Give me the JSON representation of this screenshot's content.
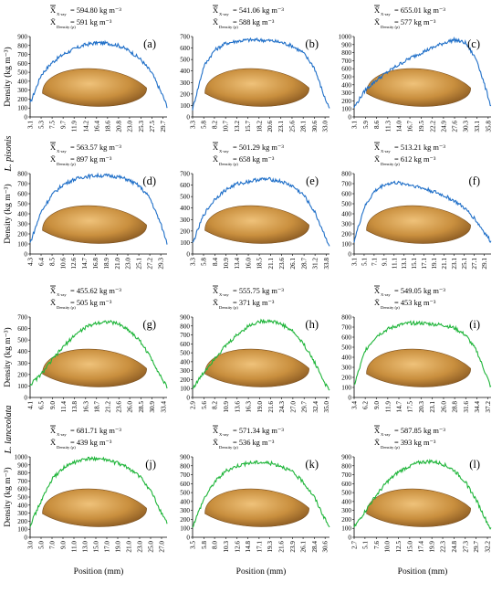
{
  "figure": {
    "row_labels": [
      "L. pisonis",
      "L. lanceolata"
    ],
    "xlabel": "Position (mm)",
    "ylabel": "Density (kg m⁻³)",
    "legend_symbol": "X̄",
    "xray_subscript": "X-ray",
    "density_subscript": "Density (ρ)",
    "colors": {
      "species_1": "#1f6fc8",
      "species_2": "#1fb53a",
      "seed_fill": "#c08a3c",
      "seed_light": "#e6b56a"
    }
  },
  "chart_data": [
    {
      "panel": "(a)",
      "type": "line",
      "species": "L. pisonis",
      "xray_mean": "= 594.80 kg m⁻³",
      "density_mean": "= 591 kg m⁻³",
      "yticks": [
        "0",
        "100",
        "200",
        "300",
        "400",
        "500",
        "600",
        "700",
        "800",
        "900"
      ],
      "ylim": [
        0,
        900
      ],
      "xticks": [
        "3.1",
        "5.3",
        "7.5",
        "9.7",
        "11.9",
        "14.2",
        "16.4",
        "18.6",
        "20.8",
        "23.0",
        "25.3",
        "27.5",
        "29.7"
      ],
      "xlim": [
        3.1,
        30.5
      ],
      "x": [
        3.1,
        5.3,
        7.5,
        9.7,
        11.9,
        14.2,
        16.4,
        18.6,
        20.8,
        23.0,
        25.3,
        27.5,
        29.7,
        30.5
      ],
      "y": [
        150,
        470,
        610,
        700,
        760,
        810,
        830,
        825,
        800,
        740,
        640,
        490,
        230,
        120
      ]
    },
    {
      "panel": "(b)",
      "type": "line",
      "species": "L. pisonis",
      "xray_mean": "= 541.06 kg m⁻³",
      "density_mean": "= 588 kg m⁻³",
      "yticks": [
        "0",
        "100",
        "200",
        "300",
        "400",
        "500",
        "600",
        "700"
      ],
      "ylim": [
        0,
        700
      ],
      "xticks": [
        "3.3",
        "5.8",
        "8.2",
        "10.7",
        "13.2",
        "15.7",
        "18.2",
        "20.6",
        "23.1",
        "25.6",
        "28.1",
        "30.6",
        "33.0"
      ],
      "xlim": [
        3.3,
        34
      ],
      "x": [
        3.3,
        5.8,
        8.2,
        10.7,
        13.2,
        15.7,
        18.2,
        20.6,
        23.1,
        25.6,
        28.1,
        30.6,
        33.0,
        34.0
      ],
      "y": [
        70,
        440,
        580,
        640,
        660,
        670,
        670,
        665,
        650,
        620,
        560,
        430,
        160,
        80
      ]
    },
    {
      "panel": "(c)",
      "type": "line",
      "species": "L. pisonis",
      "xray_mean": "= 655.01 kg m⁻³",
      "density_mean": "= 577 kg m⁻³",
      "yticks": [
        "0",
        "100",
        "200",
        "300",
        "400",
        "500",
        "600",
        "700",
        "800",
        "900",
        "1000"
      ],
      "ylim": [
        0,
        1000
      ],
      "xticks": [
        "3.1",
        "5.9",
        "8.6",
        "11.3",
        "14.0",
        "16.7",
        "19.5",
        "22.2",
        "24.9",
        "27.6",
        "30.3",
        "33.1",
        "35.8"
      ],
      "xlim": [
        3.1,
        36.5
      ],
      "x": [
        3.1,
        5.9,
        8.6,
        11.3,
        14.0,
        16.7,
        19.5,
        22.2,
        24.9,
        27.6,
        30.3,
        33.1,
        35.8,
        36.5
      ],
      "y": [
        120,
        340,
        460,
        560,
        650,
        730,
        800,
        860,
        920,
        960,
        920,
        700,
        250,
        130
      ]
    },
    {
      "panel": "(d)",
      "type": "line",
      "species": "L. pisonis",
      "xray_mean": "= 563.57 kg m⁻³",
      "density_mean": "= 897 kg m⁻³",
      "yticks": [
        "0",
        "100",
        "200",
        "300",
        "400",
        "500",
        "600",
        "700",
        "800"
      ],
      "ylim": [
        0,
        800
      ],
      "xticks": [
        "4.3",
        "6.4",
        "8.5",
        "10.6",
        "12.6",
        "14.7",
        "16.8",
        "18.9",
        "21.0",
        "23.0",
        "25.1",
        "27.2",
        "29.3"
      ],
      "xlim": [
        4.3,
        30.5
      ],
      "x": [
        4.3,
        6.4,
        8.5,
        10.6,
        12.6,
        14.7,
        16.8,
        18.9,
        21.0,
        23.0,
        25.1,
        27.2,
        29.3,
        30.5
      ],
      "y": [
        110,
        420,
        590,
        690,
        740,
        770,
        780,
        780,
        770,
        740,
        680,
        560,
        300,
        110
      ]
    },
    {
      "panel": "(e)",
      "type": "line",
      "species": "L. pisonis",
      "xray_mean": "= 501.29 kg m⁻³",
      "density_mean": "= 658 kg m⁻³",
      "yticks": [
        "0",
        "100",
        "200",
        "300",
        "400",
        "500",
        "600",
        "700"
      ],
      "ylim": [
        0,
        700
      ],
      "xticks": [
        "3.3",
        "5.8",
        "8.4",
        "10.9",
        "13.4",
        "16.0",
        "18.5",
        "21.1",
        "23.6",
        "26.1",
        "28.7",
        "31.2",
        "33.8"
      ],
      "xlim": [
        3.3,
        34.5
      ],
      "x": [
        3.3,
        5.8,
        8.4,
        10.9,
        13.4,
        16.0,
        18.5,
        21.1,
        23.6,
        26.1,
        28.7,
        31.2,
        33.8,
        34.5
      ],
      "y": [
        90,
        340,
        480,
        560,
        610,
        630,
        650,
        650,
        630,
        590,
        510,
        360,
        130,
        70
      ]
    },
    {
      "panel": "(f)",
      "type": "line",
      "species": "L. pisonis",
      "xray_mean": "= 513.21 kg m⁻³",
      "density_mean": "= 612 kg m⁻³",
      "yticks": [
        "0",
        "100",
        "200",
        "300",
        "400",
        "500",
        "600",
        "700",
        "800"
      ],
      "ylim": [
        0,
        800
      ],
      "xticks": [
        "3.1",
        "5.1",
        "7.1",
        "9.1",
        "11.1",
        "13.1",
        "15.1",
        "17.1",
        "19.1",
        "21.1",
        "23.1",
        "25.1",
        "27.1",
        "29.1"
      ],
      "xlim": [
        3.1,
        30.5
      ],
      "x": [
        3.1,
        5.1,
        7.1,
        9.1,
        11.1,
        13.1,
        15.1,
        17.1,
        19.1,
        21.1,
        23.1,
        25.1,
        27.1,
        29.1,
        30.5
      ],
      "y": [
        130,
        460,
        620,
        690,
        710,
        700,
        680,
        650,
        620,
        580,
        530,
        460,
        360,
        220,
        120
      ]
    },
    {
      "panel": "(g)",
      "type": "line",
      "species": "L. lanceolata",
      "xray_mean": "= 455.62 kg m⁻³",
      "density_mean": "= 505 kg m⁻³",
      "yticks": [
        "0",
        "100",
        "200",
        "300",
        "400",
        "500",
        "600",
        "700"
      ],
      "ylim": [
        0,
        700
      ],
      "xticks": [
        "4.1",
        "6.5",
        "9.0",
        "11.4",
        "13.8",
        "16.3",
        "18.7",
        "21.2",
        "23.6",
        "26.0",
        "28.5",
        "30.9",
        "33.4"
      ],
      "xlim": [
        4.1,
        34.2
      ],
      "x": [
        4.1,
        6.5,
        9.0,
        11.4,
        13.8,
        16.3,
        18.7,
        21.2,
        23.6,
        26.0,
        28.5,
        30.9,
        33.4,
        34.2
      ],
      "y": [
        110,
        200,
        330,
        440,
        540,
        610,
        650,
        660,
        640,
        580,
        480,
        330,
        140,
        90
      ]
    },
    {
      "panel": "(h)",
      "type": "line",
      "species": "L. lanceolata",
      "xray_mean": "= 555.75 kg m⁻³",
      "density_mean": "= 371 kg m⁻³",
      "yticks": [
        "0",
        "100",
        "200",
        "300",
        "400",
        "500",
        "600",
        "700",
        "800",
        "900"
      ],
      "ylim": [
        0,
        900
      ],
      "xticks": [
        "2.9",
        "5.6",
        "8.2",
        "10.9",
        "13.6",
        "16.3",
        "19.0",
        "21.6",
        "24.3",
        "27.0",
        "29.7",
        "32.4",
        "35.0"
      ],
      "xlim": [
        2.9,
        35.8
      ],
      "x": [
        2.9,
        5.6,
        8.2,
        10.9,
        13.6,
        16.3,
        19.0,
        21.6,
        24.3,
        27.0,
        29.7,
        32.4,
        35.0,
        35.8
      ],
      "y": [
        100,
        280,
        440,
        580,
        700,
        800,
        850,
        860,
        820,
        740,
        590,
        380,
        130,
        80
      ]
    },
    {
      "panel": "(i)",
      "type": "line",
      "species": "L. lanceolata",
      "xray_mean": "= 549.05 kg m⁻³",
      "density_mean": "= 453 kg m⁻³",
      "yticks": [
        "0",
        "100",
        "200",
        "300",
        "400",
        "500",
        "600",
        "700",
        "800"
      ],
      "ylim": [
        0,
        800
      ],
      "xticks": [
        "3.4",
        "6.2",
        "9.0",
        "11.9",
        "14.7",
        "17.5",
        "20.3",
        "23.1",
        "26.0",
        "28.8",
        "31.6",
        "34.4",
        "37.2"
      ],
      "xlim": [
        3.4,
        38
      ],
      "x": [
        3.4,
        6.2,
        9.0,
        11.9,
        14.7,
        17.5,
        20.3,
        23.1,
        26.0,
        28.8,
        31.6,
        34.4,
        37.2,
        38.0
      ],
      "y": [
        120,
        470,
        610,
        680,
        720,
        740,
        740,
        730,
        720,
        690,
        620,
        460,
        180,
        100
      ]
    },
    {
      "panel": "(j)",
      "type": "line",
      "species": "L. lanceolata",
      "xray_mean": "= 681.71 kg m⁻³",
      "density_mean": "= 439 kg m⁻³",
      "yticks": [
        "0",
        "100",
        "200",
        "300",
        "400",
        "500",
        "600",
        "700",
        "800",
        "900",
        "1000"
      ],
      "ylim": [
        0,
        1000
      ],
      "xticks": [
        "3.0",
        "5.0",
        "7.0",
        "9.0",
        "11.0",
        "13.0",
        "15.0",
        "17.0",
        "19.0",
        "21.0",
        "23.0",
        "25.0",
        "27.0"
      ],
      "xlim": [
        3.0,
        28
      ],
      "x": [
        3.0,
        5.0,
        7.0,
        9.0,
        11.0,
        13.0,
        15.0,
        17.0,
        19.0,
        21.0,
        23.0,
        25.0,
        27.0,
        28.0
      ],
      "y": [
        150,
        450,
        720,
        860,
        930,
        970,
        980,
        960,
        920,
        860,
        760,
        580,
        300,
        180
      ]
    },
    {
      "panel": "(k)",
      "type": "line",
      "species": "L. lanceolata",
      "xray_mean": "= 571.34 kg m⁻³",
      "density_mean": "= 536 kg m⁻³",
      "yticks": [
        "0",
        "100",
        "200",
        "300",
        "400",
        "500",
        "600",
        "700",
        "800",
        "900"
      ],
      "ylim": [
        0,
        900
      ],
      "xticks": [
        "3.5",
        "5.8",
        "8.0",
        "10.3",
        "12.6",
        "14.8",
        "17.1",
        "19.3",
        "21.6",
        "23.9",
        "26.1",
        "28.4",
        "30.6"
      ],
      "xlim": [
        3.5,
        31.5
      ],
      "x": [
        3.5,
        5.8,
        8.0,
        10.3,
        12.6,
        14.8,
        17.1,
        19.3,
        21.6,
        23.9,
        26.1,
        28.4,
        30.6,
        31.5
      ],
      "y": [
        120,
        430,
        620,
        740,
        800,
        830,
        840,
        830,
        800,
        730,
        620,
        450,
        200,
        110
      ]
    },
    {
      "panel": "(l)",
      "type": "line",
      "species": "L. lanceolata",
      "xray_mean": "= 587.85 kg m⁻³",
      "density_mean": "= 393 kg m⁻³",
      "yticks": [
        "0",
        "100",
        "200",
        "300",
        "400",
        "500",
        "600",
        "700",
        "800",
        "900"
      ],
      "ylim": [
        0,
        900
      ],
      "xticks": [
        "2.7",
        "5.1",
        "7.6",
        "10.0",
        "12.5",
        "15.0",
        "17.4",
        "19.9",
        "22.3",
        "24.8",
        "27.3",
        "29.7",
        "32.2"
      ],
      "xlim": [
        2.7,
        33
      ],
      "x": [
        2.7,
        5.1,
        7.6,
        10.0,
        12.5,
        15.0,
        17.4,
        19.9,
        22.3,
        24.8,
        27.3,
        29.7,
        32.2,
        33.0
      ],
      "y": [
        110,
        290,
        470,
        620,
        730,
        800,
        840,
        850,
        820,
        750,
        620,
        420,
        160,
        90
      ]
    }
  ]
}
